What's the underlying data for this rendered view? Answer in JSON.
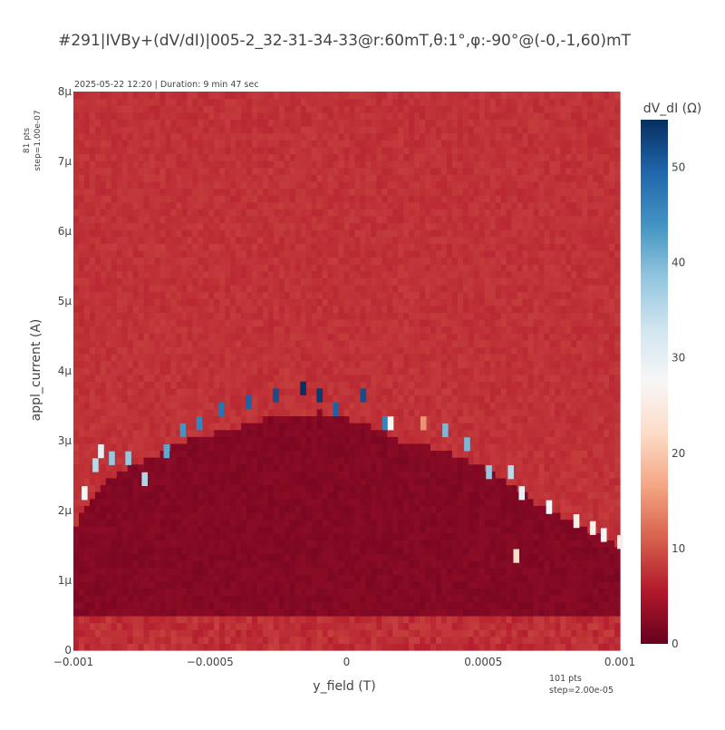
{
  "chart_data": {
    "type": "heatmap",
    "title": "#291|IVBy+(dV/dI)|005-2_32-31-34-33@r:60mT,θ:1°,φ:-90°@(-0,-1,60)mT",
    "subtitle": "2025-05-22 12:20 | Duration: 9 min 47 sec",
    "xlabel": "y_field (T)",
    "ylabel": "appl_current (A)",
    "x_range": [
      -0.001,
      0.001
    ],
    "y_range": [
      0,
      8e-06
    ],
    "x_points": 101,
    "y_points": 81,
    "x_step": 2e-05,
    "y_step": 1e-07,
    "x_ticks": [
      {
        "value": -0.001,
        "label": "−0.001"
      },
      {
        "value": -0.0005,
        "label": "−0.0005"
      },
      {
        "value": 0,
        "label": "0"
      },
      {
        "value": 0.0005,
        "label": "0.0005"
      },
      {
        "value": 0.001,
        "label": "0.001"
      }
    ],
    "y_ticks": [
      {
        "value": 0,
        "label": "0"
      },
      {
        "value": 1e-06,
        "label": "1μ"
      },
      {
        "value": 2e-06,
        "label": "2μ"
      },
      {
        "value": 3e-06,
        "label": "3μ"
      },
      {
        "value": 4e-06,
        "label": "4μ"
      },
      {
        "value": 5e-06,
        "label": "5μ"
      },
      {
        "value": 6e-06,
        "label": "6μ"
      },
      {
        "value": 7e-06,
        "label": "7μ"
      },
      {
        "value": 8e-06,
        "label": "8μ"
      }
    ],
    "x_info": {
      "line1": "101 pts",
      "line2": "step=2.00e-05"
    },
    "y_info": {
      "line1": "81 pts",
      "line2": "step=1.00e-07"
    },
    "colorbar": {
      "title": "dV_dI (Ω)",
      "range": [
        0,
        55
      ],
      "ticks": [
        {
          "value": 0,
          "label": "0"
        },
        {
          "value": 10,
          "label": "10"
        },
        {
          "value": 20,
          "label": "20"
        },
        {
          "value": 30,
          "label": "30"
        },
        {
          "value": 40,
          "label": "40"
        },
        {
          "value": 50,
          "label": "50"
        }
      ]
    },
    "colorscale": [
      [
        0.0,
        "#67001f"
      ],
      [
        0.1,
        "#b2182b"
      ],
      [
        0.2,
        "#d6604d"
      ],
      [
        0.3,
        "#f4a582"
      ],
      [
        0.4,
        "#fddbc7"
      ],
      [
        0.5,
        "#f7f7f7"
      ],
      [
        0.6,
        "#d1e5f0"
      ],
      [
        0.7,
        "#92c5de"
      ],
      [
        0.8,
        "#4393c3"
      ],
      [
        0.9,
        "#2166ac"
      ],
      [
        1.0,
        "#053061"
      ]
    ],
    "normal_state_value": 7.5,
    "superconducting_value": 1.5,
    "low_current_value": 6,
    "critical_current_boundary": {
      "x": [
        -0.001,
        -0.00095,
        -0.0009,
        -0.0008,
        -0.0007,
        -0.0006,
        -0.0005,
        -0.0004,
        -0.0003,
        -0.0002,
        -0.0001,
        0,
        0.0001,
        0.0002,
        0.0003,
        0.0004,
        0.0005,
        0.0006,
        0.0007,
        0.0008,
        0.0009,
        0.001
      ],
      "y": [
        1.8e-06,
        2.1e-06,
        2.4e-06,
        2.6e-06,
        2.8e-06,
        3e-06,
        3.1e-06,
        3.2e-06,
        3.3e-06,
        3.3e-06,
        3.4e-06,
        3.3e-06,
        3.2e-06,
        3e-06,
        2.9e-06,
        2.8e-06,
        2.6e-06,
        2.4e-06,
        2.1e-06,
        1.9e-06,
        1.7e-06,
        1.5e-06
      ]
    },
    "switching_peaks": [
      {
        "x": -0.00096,
        "y": 2.2e-06,
        "v": 28
      },
      {
        "x": -0.00092,
        "y": 2.6e-06,
        "v": 35
      },
      {
        "x": -0.0009,
        "y": 2.8e-06,
        "v": 30
      },
      {
        "x": -0.00086,
        "y": 2.7e-06,
        "v": 38
      },
      {
        "x": -0.0008,
        "y": 2.7e-06,
        "v": 38
      },
      {
        "x": -0.00074,
        "y": 2.4e-06,
        "v": 36
      },
      {
        "x": -0.00066,
        "y": 2.8e-06,
        "v": 42
      },
      {
        "x": -0.0006,
        "y": 3.1e-06,
        "v": 44
      },
      {
        "x": -0.00054,
        "y": 3.2e-06,
        "v": 46
      },
      {
        "x": -0.00046,
        "y": 3.4e-06,
        "v": 48
      },
      {
        "x": -0.00036,
        "y": 3.5e-06,
        "v": 50
      },
      {
        "x": -0.00026,
        "y": 3.6e-06,
        "v": 52
      },
      {
        "x": -0.00016,
        "y": 3.7e-06,
        "v": 55
      },
      {
        "x": -0.0001,
        "y": 3.6e-06,
        "v": 54
      },
      {
        "x": -4e-05,
        "y": 3.4e-06,
        "v": 50
      },
      {
        "x": 6e-05,
        "y": 3.6e-06,
        "v": 52
      },
      {
        "x": 0.00014,
        "y": 3.2e-06,
        "v": 46
      },
      {
        "x": 0.00016,
        "y": 3.2e-06,
        "v": 28
      },
      {
        "x": 0.00028,
        "y": 3.2e-06,
        "v": 15
      },
      {
        "x": 0.00036,
        "y": 3.1e-06,
        "v": 40
      },
      {
        "x": 0.00044,
        "y": 2.9e-06,
        "v": 40
      },
      {
        "x": 0.00052,
        "y": 2.5e-06,
        "v": 38
      },
      {
        "x": 0.0006,
        "y": 2.5e-06,
        "v": 35
      },
      {
        "x": 0.00062,
        "y": 1.3e-06,
        "v": 22
      },
      {
        "x": 0.00064,
        "y": 2.2e-06,
        "v": 30
      },
      {
        "x": 0.00074,
        "y": 2e-06,
        "v": 28
      },
      {
        "x": 0.00084,
        "y": 1.8e-06,
        "v": 26
      },
      {
        "x": 0.0009,
        "y": 1.7e-06,
        "v": 26
      },
      {
        "x": 0.00094,
        "y": 1.6e-06,
        "v": 28
      },
      {
        "x": 0.001,
        "y": 1.5e-06,
        "v": 26
      }
    ]
  }
}
